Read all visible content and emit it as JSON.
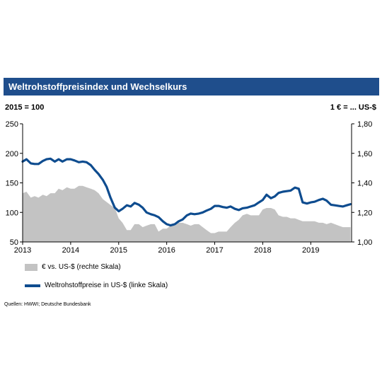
{
  "header": {
    "title": "Weltrohstoffpreisindex  und Wechselkurs"
  },
  "axis_captions": {
    "left": "2015 = 100",
    "right": "1 € = ... US-$"
  },
  "legend": [
    {
      "label": "€ vs. US-$ (rechte Skala)",
      "color": "#c3c3c3"
    },
    {
      "label": "Weltrohstoffpreise in US-$ (linke Skala)",
      "color": "#0e4c8f"
    }
  ],
  "source": "Quellen:  HWWI; Deutsche  Bundesbank",
  "chart_data": {
    "type": "line",
    "x_ticks": [
      "2013",
      "2014",
      "2015",
      "2016",
      "2017",
      "2018",
      "2019"
    ],
    "y_left": {
      "ticks": [
        "50",
        "100",
        "150",
        "200",
        "250"
      ],
      "lim": [
        50,
        250
      ]
    },
    "y_right": {
      "ticks": [
        "1,00",
        "1,20",
        "1,40",
        "1,60",
        "1,80"
      ],
      "lim": [
        1.0,
        1.8
      ]
    },
    "xlim": [
      2013.0,
      2019.85
    ],
    "grid": false,
    "series": [
      {
        "name": "€ vs. US-$ (rechte Skala)",
        "type": "area",
        "axis": "right",
        "color": "#c3c3c3",
        "x": [
          2013.0,
          2013.08,
          2013.17,
          2013.25,
          2013.33,
          2013.42,
          2013.5,
          2013.58,
          2013.67,
          2013.75,
          2013.83,
          2013.92,
          2014.0,
          2014.08,
          2014.17,
          2014.25,
          2014.33,
          2014.42,
          2014.5,
          2014.58,
          2014.67,
          2014.75,
          2014.83,
          2014.92,
          2015.0,
          2015.08,
          2015.17,
          2015.25,
          2015.33,
          2015.42,
          2015.5,
          2015.58,
          2015.67,
          2015.75,
          2015.83,
          2015.92,
          2016.0,
          2016.08,
          2016.17,
          2016.25,
          2016.33,
          2016.42,
          2016.5,
          2016.58,
          2016.67,
          2016.75,
          2016.83,
          2016.92,
          2017.0,
          2017.08,
          2017.17,
          2017.25,
          2017.33,
          2017.42,
          2017.5,
          2017.58,
          2017.67,
          2017.75,
          2017.83,
          2017.92,
          2018.0,
          2018.08,
          2018.17,
          2018.25,
          2018.33,
          2018.42,
          2018.5,
          2018.58,
          2018.67,
          2018.75,
          2018.83,
          2018.92,
          2019.0,
          2019.08,
          2019.17,
          2019.25,
          2019.33,
          2019.42,
          2019.5,
          2019.58,
          2019.67,
          2019.75,
          2019.83
        ],
        "values": [
          1.33,
          1.34,
          1.3,
          1.31,
          1.3,
          1.32,
          1.31,
          1.33,
          1.33,
          1.36,
          1.35,
          1.37,
          1.36,
          1.36,
          1.38,
          1.38,
          1.37,
          1.36,
          1.35,
          1.33,
          1.29,
          1.27,
          1.25,
          1.23,
          1.16,
          1.13,
          1.08,
          1.08,
          1.12,
          1.12,
          1.1,
          1.11,
          1.12,
          1.12,
          1.07,
          1.09,
          1.09,
          1.11,
          1.11,
          1.13,
          1.13,
          1.12,
          1.11,
          1.12,
          1.12,
          1.1,
          1.08,
          1.06,
          1.06,
          1.07,
          1.07,
          1.07,
          1.1,
          1.13,
          1.15,
          1.18,
          1.19,
          1.18,
          1.18,
          1.18,
          1.22,
          1.23,
          1.23,
          1.22,
          1.18,
          1.17,
          1.17,
          1.16,
          1.16,
          1.15,
          1.14,
          1.14,
          1.14,
          1.14,
          1.13,
          1.13,
          1.12,
          1.13,
          1.12,
          1.11,
          1.1,
          1.1,
          1.1
        ]
      },
      {
        "name": "Weltrohstoffpreise in US-$ (linke Skala)",
        "type": "line",
        "axis": "left",
        "color": "#0e4c8f",
        "x": [
          2013.0,
          2013.08,
          2013.17,
          2013.25,
          2013.33,
          2013.42,
          2013.5,
          2013.58,
          2013.67,
          2013.75,
          2013.83,
          2013.92,
          2014.0,
          2014.08,
          2014.17,
          2014.25,
          2014.33,
          2014.42,
          2014.5,
          2014.58,
          2014.67,
          2014.75,
          2014.83,
          2014.92,
          2015.0,
          2015.08,
          2015.17,
          2015.25,
          2015.33,
          2015.42,
          2015.5,
          2015.58,
          2015.67,
          2015.75,
          2015.83,
          2015.92,
          2016.0,
          2016.08,
          2016.17,
          2016.25,
          2016.33,
          2016.42,
          2016.5,
          2016.58,
          2016.67,
          2016.75,
          2016.83,
          2016.92,
          2017.0,
          2017.08,
          2017.17,
          2017.25,
          2017.33,
          2017.42,
          2017.5,
          2017.58,
          2017.67,
          2017.75,
          2017.83,
          2017.92,
          2018.0,
          2018.08,
          2018.17,
          2018.25,
          2018.33,
          2018.42,
          2018.5,
          2018.58,
          2018.67,
          2018.75,
          2018.83,
          2018.92,
          2019.0,
          2019.08,
          2019.17,
          2019.25,
          2019.33,
          2019.42,
          2019.5,
          2019.58,
          2019.67,
          2019.75,
          2019.83
        ],
        "values": [
          186,
          190,
          183,
          182,
          182,
          187,
          190,
          191,
          186,
          190,
          186,
          190,
          190,
          188,
          185,
          186,
          185,
          180,
          172,
          165,
          155,
          143,
          125,
          108,
          102,
          106,
          112,
          110,
          116,
          113,
          108,
          100,
          97,
          95,
          92,
          85,
          80,
          78,
          80,
          85,
          88,
          95,
          98,
          97,
          98,
          100,
          103,
          106,
          111,
          111,
          109,
          108,
          110,
          106,
          104,
          107,
          108,
          110,
          112,
          117,
          121,
          130,
          124,
          127,
          133,
          135,
          136,
          137,
          142,
          140,
          117,
          115,
          117,
          118,
          121,
          123,
          120,
          113,
          112,
          111,
          110,
          112,
          114
        ]
      }
    ]
  }
}
